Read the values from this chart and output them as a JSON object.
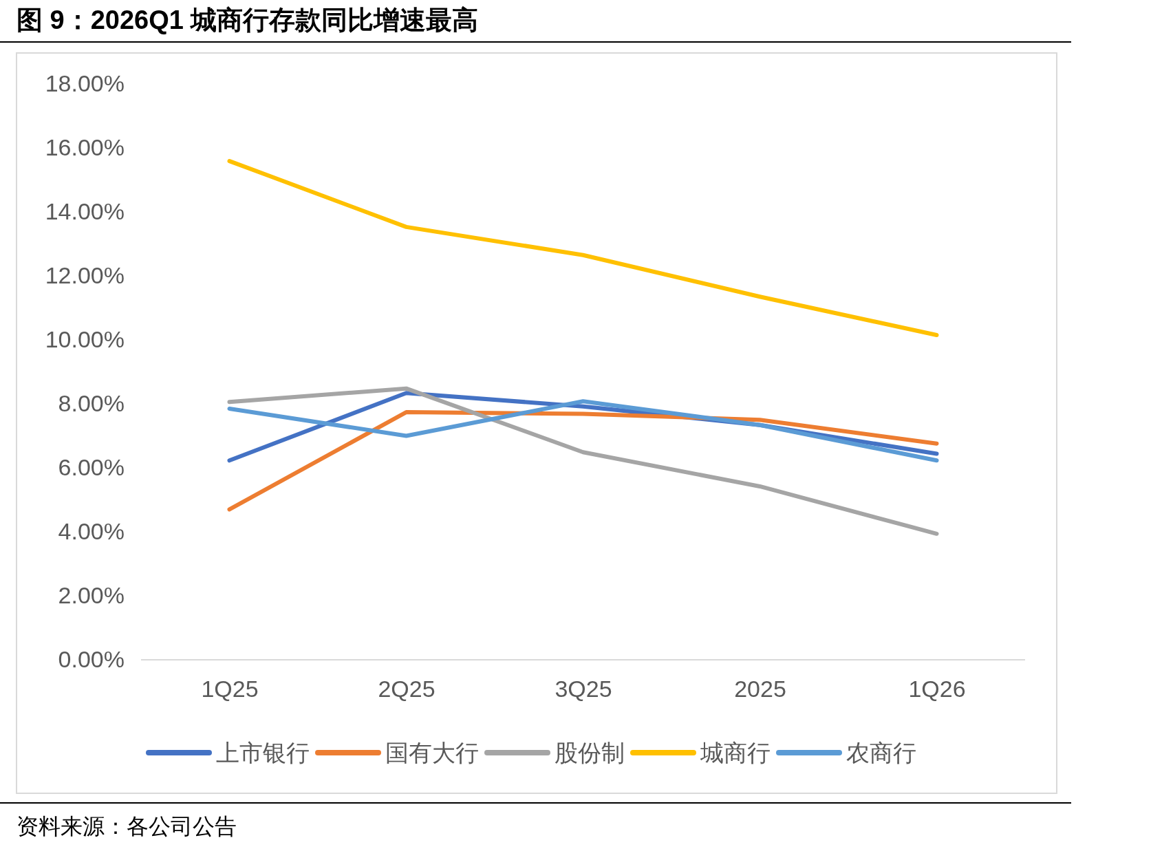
{
  "chart_data": {
    "type": "line",
    "title": "图 9：2026Q1 城商行存款同比增速最高",
    "annotations": [
      "资料来源：各公司公告"
    ],
    "categories": [
      "1Q25",
      "2Q25",
      "3Q25",
      "2025",
      "1Q26"
    ],
    "series": [
      {
        "name": "上市银行",
        "color": "#4472c4",
        "values": [
          6.23,
          8.34,
          7.92,
          7.34,
          6.44
        ]
      },
      {
        "name": "国有大行",
        "color": "#ed7d31",
        "values": [
          4.7,
          7.74,
          7.69,
          7.5,
          6.76
        ]
      },
      {
        "name": "股份制",
        "color": "#a5a5a5",
        "values": [
          8.06,
          8.48,
          6.49,
          5.42,
          3.94
        ]
      },
      {
        "name": "城商行",
        "color": "#ffc000",
        "values": [
          15.59,
          13.53,
          12.65,
          11.35,
          10.15
        ]
      },
      {
        "name": "农商行",
        "color": "#5b9bd5",
        "values": [
          7.85,
          7.0,
          8.08,
          7.34,
          6.23
        ]
      }
    ],
    "ylim": [
      0,
      18
    ],
    "yticks": [
      {
        "value": 0,
        "label": "0.00%"
      },
      {
        "value": 2,
        "label": "2.00%"
      },
      {
        "value": 4,
        "label": "4.00%"
      },
      {
        "value": 6,
        "label": "6.00%"
      },
      {
        "value": 8,
        "label": "8.00%"
      },
      {
        "value": 10,
        "label": "10.00%"
      },
      {
        "value": 12,
        "label": "12.00%"
      },
      {
        "value": 14,
        "label": "14.00%"
      },
      {
        "value": 16,
        "label": "16.00%"
      },
      {
        "value": 18,
        "label": "18.00%"
      }
    ],
    "grid": false,
    "legend": "bottom",
    "marker": "none",
    "line_style": "solid"
  }
}
